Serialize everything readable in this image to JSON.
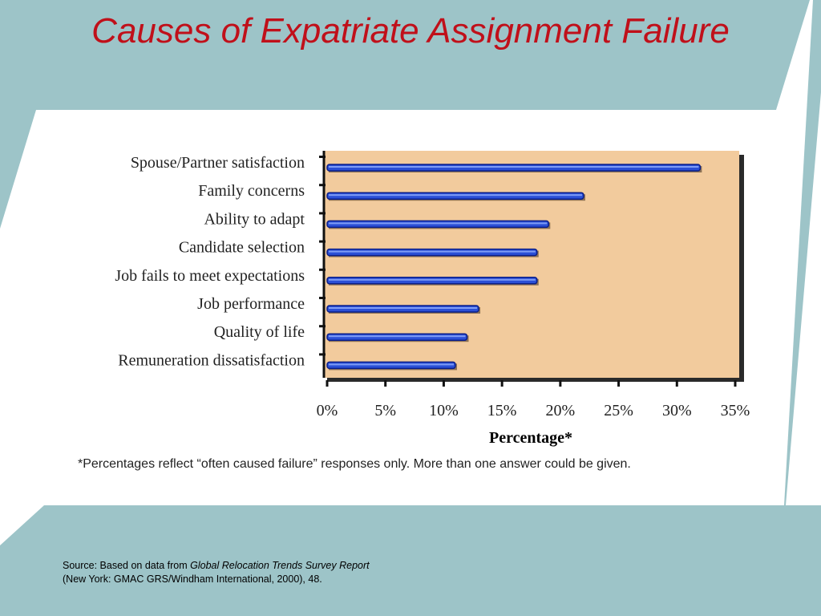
{
  "slide": {
    "title": "Causes of Expatriate Assignment Failure",
    "footnote": "*Percentages reflect “often caused failure” responses only. More than one answer could be given.",
    "source_prefix": "Source: Based on data from ",
    "source_title": "Global Relocation Trends Survey Report",
    "source_line2": "(New York: GMAC GRS/Windham International, 2000), 48."
  },
  "colors": {
    "teal": "#9dc4c8",
    "panel": "#f2cb9d",
    "bar": "#2b4fd6",
    "bar_edge": "#0b1f8a",
    "title": "#c0101a"
  },
  "chart_data": {
    "type": "bar",
    "orientation": "horizontal",
    "categories": [
      "Spouse/Partner satisfaction",
      "Family concerns",
      "Ability to adapt",
      "Candidate selection",
      "Job fails to meet expectations",
      "Job performance",
      "Quality of life",
      "Remuneration dissatisfaction"
    ],
    "values": [
      32,
      22,
      19,
      18,
      18,
      13,
      12,
      11
    ],
    "xlabel": "Percentage*",
    "xlim": [
      0,
      35
    ],
    "xticks": [
      "0%",
      "5%",
      "10%",
      "15%",
      "20%",
      "25%",
      "30%",
      "35%"
    ],
    "grid": false
  }
}
